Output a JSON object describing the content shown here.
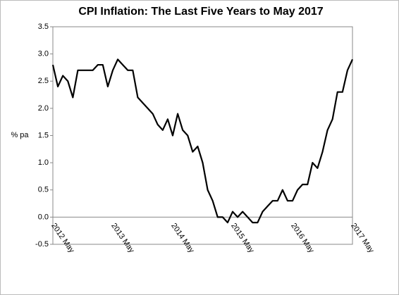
{
  "chart_data": {
    "type": "line",
    "title": "CPI Inflation: The Last Five Years to May  2017",
    "y_label": "% pa",
    "categories": [
      "2012 May",
      null,
      null,
      null,
      null,
      null,
      null,
      null,
      null,
      null,
      null,
      null,
      "2013 May",
      null,
      null,
      null,
      null,
      null,
      null,
      null,
      null,
      null,
      null,
      null,
      "2014 May",
      null,
      null,
      null,
      null,
      null,
      null,
      null,
      null,
      null,
      null,
      null,
      "2015 May",
      null,
      null,
      null,
      null,
      null,
      null,
      null,
      null,
      null,
      null,
      null,
      "2016 May",
      null,
      null,
      null,
      null,
      null,
      null,
      null,
      null,
      null,
      null,
      null,
      "2017 May"
    ],
    "values": [
      2.8,
      2.4,
      2.6,
      2.5,
      2.2,
      2.7,
      2.7,
      2.7,
      2.7,
      2.8,
      2.8,
      2.4,
      2.7,
      2.9,
      2.8,
      2.7,
      2.7,
      2.2,
      2.1,
      2.0,
      1.9,
      1.7,
      1.6,
      1.8,
      1.5,
      1.9,
      1.6,
      1.5,
      1.2,
      1.3,
      1.0,
      0.5,
      0.3,
      0.0,
      0.0,
      -0.1,
      0.1,
      0.0,
      0.1,
      0.0,
      -0.1,
      -0.1,
      0.1,
      0.2,
      0.3,
      0.3,
      0.5,
      0.3,
      0.3,
      0.5,
      0.6,
      0.6,
      1.0,
      0.9,
      1.2,
      1.6,
      1.8,
      2.3,
      2.3,
      2.7,
      2.9
    ],
    "color": "#000000",
    "ylim": [
      -0.5,
      3.5
    ],
    "yticks": [
      -0.5,
      {
        "value": 0,
        "label": "0.0"
      },
      0.5,
      {
        "value": 1,
        "label": "1.0"
      },
      1.5,
      {
        "value": 2,
        "label": "2.0"
      },
      2.5,
      {
        "value": 3,
        "label": "3.0"
      },
      3.5
    ]
  }
}
